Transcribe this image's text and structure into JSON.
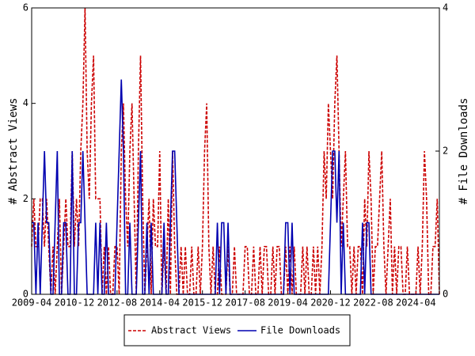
{
  "chart_data": {
    "type": "line",
    "categories": [
      "2009-04",
      null,
      null,
      null,
      null,
      null,
      null,
      null,
      null,
      null,
      null,
      null,
      null,
      null,
      null,
      null,
      null,
      null,
      null,
      null,
      "2010-12",
      null,
      null,
      null,
      null,
      null,
      null,
      null,
      null,
      null,
      null,
      null,
      null,
      null,
      null,
      null,
      null,
      null,
      null,
      null,
      "2012-08",
      null,
      null,
      null,
      null,
      null,
      null,
      null,
      null,
      null,
      null,
      null,
      null,
      null,
      null,
      null,
      null,
      null,
      null,
      null,
      "2014-04",
      null,
      null,
      null,
      null,
      null,
      null,
      null,
      null,
      null,
      null,
      null,
      null,
      null,
      null,
      null,
      null,
      null,
      null,
      null,
      "2015-12",
      null,
      null,
      null,
      null,
      null,
      null,
      null,
      null,
      null,
      null,
      null,
      null,
      null,
      null,
      null,
      null,
      null,
      null,
      null,
      "2017-08",
      null,
      null,
      null,
      null,
      null,
      null,
      null,
      null,
      null,
      null,
      null,
      null,
      null,
      null,
      null,
      null,
      null,
      null,
      null,
      "2019-04",
      null,
      null,
      null,
      null,
      null,
      null,
      null,
      null,
      null,
      null,
      null,
      null,
      null,
      null,
      null,
      null,
      null,
      null,
      null,
      "2020-12",
      null,
      null,
      null,
      null,
      null,
      null,
      null,
      null,
      null,
      null,
      null,
      null,
      null,
      null,
      null,
      null,
      null,
      null,
      null,
      "2022-08",
      null,
      null,
      null,
      null,
      null,
      null,
      null,
      null,
      null,
      null,
      null,
      null,
      null,
      null,
      null,
      null,
      null,
      null,
      null,
      "2024-04",
      null,
      null,
      null,
      null,
      null,
      null,
      null,
      null,
      null,
      null,
      null
    ],
    "y_label": "# Abstract Views",
    "y2_label": "# File Downloads",
    "series": [
      {
        "name": "Abstract Views",
        "color": "#cc0000",
        "dashed": true,
        "axis": "y",
        "values": [
          1,
          2,
          1,
          1,
          2,
          2,
          1,
          2,
          1,
          0,
          1,
          0,
          1,
          2,
          0,
          1,
          2,
          1,
          1,
          3,
          1,
          2,
          1,
          3,
          4,
          6,
          3,
          2,
          4,
          5,
          2,
          2,
          2,
          0,
          1,
          0,
          1,
          0,
          0,
          1,
          1,
          0,
          3,
          4,
          2,
          1,
          3,
          4,
          2,
          0,
          3,
          5,
          2,
          0,
          1,
          2,
          0,
          2,
          1,
          1,
          3,
          0,
          1,
          0,
          2,
          0,
          3,
          1,
          0,
          0,
          1,
          0,
          1,
          0,
          0,
          1,
          0,
          0,
          1,
          0,
          1,
          3,
          4,
          1,
          0,
          1,
          0,
          0,
          1,
          0,
          0,
          0,
          1,
          0,
          0,
          1,
          0,
          0,
          0,
          0,
          1,
          1,
          0,
          0,
          1,
          0,
          0,
          1,
          0,
          1,
          1,
          0,
          0,
          1,
          0,
          1,
          1,
          0,
          0,
          1,
          0,
          1,
          0,
          1,
          0,
          0,
          0,
          1,
          0,
          1,
          0,
          0,
          1,
          0,
          1,
          0,
          1,
          3,
          2,
          4,
          3,
          2,
          4,
          5,
          3,
          1,
          2,
          3,
          1,
          1,
          0,
          1,
          0,
          1,
          1,
          0,
          2,
          1,
          3,
          2,
          0,
          1,
          1,
          2,
          3,
          1,
          0,
          1,
          2,
          0,
          1,
          0,
          1,
          1,
          0,
          0,
          1,
          0,
          0,
          0,
          0,
          1,
          0,
          1,
          3,
          2,
          0,
          0,
          1,
          1,
          2,
          0
        ]
      },
      {
        "name": "File Downloads",
        "color": "#0000b0",
        "dashed": false,
        "axis": "y2",
        "values": [
          1,
          1,
          0,
          1,
          0,
          1,
          2,
          1,
          1,
          0,
          0,
          1,
          2,
          0,
          0,
          1,
          1,
          0,
          0,
          2,
          0,
          0,
          1,
          1,
          2,
          1,
          0,
          0,
          0,
          0,
          1,
          0,
          1,
          0,
          0,
          1,
          0,
          0,
          0,
          0,
          1,
          2,
          3,
          2,
          0,
          0,
          1,
          0,
          0,
          0,
          1,
          2,
          0,
          0,
          1,
          0,
          1,
          0,
          0,
          0,
          0,
          0,
          1,
          0,
          0,
          1,
          2,
          2,
          1,
          0,
          0,
          0,
          0,
          0,
          0,
          0,
          0,
          0,
          0,
          0,
          0,
          0,
          0,
          0,
          0,
          0,
          0,
          1,
          0,
          1,
          1,
          0,
          1,
          0,
          0,
          0,
          0,
          0,
          0,
          0,
          0,
          0,
          0,
          0,
          0,
          0,
          0,
          0,
          0,
          0,
          0,
          0,
          0,
          0,
          0,
          0,
          0,
          0,
          0,
          1,
          1,
          0,
          1,
          0,
          0,
          0,
          0,
          0,
          0,
          0,
          0,
          0,
          0,
          0,
          0,
          0,
          0,
          0,
          0,
          0,
          1,
          2,
          2,
          1,
          2,
          0,
          1,
          0,
          0,
          0,
          0,
          0,
          0,
          0,
          0,
          1,
          0,
          1,
          1,
          0,
          0,
          0,
          0,
          0,
          0,
          0,
          0,
          0,
          0,
          0,
          0,
          0,
          0,
          0,
          0,
          0,
          0,
          0,
          0,
          0,
          0,
          0,
          0,
          0,
          0,
          0,
          0,
          0,
          0,
          0,
          0,
          0
        ]
      }
    ],
    "ylim": [
      0,
      6
    ],
    "yticks": [
      0,
      2,
      4,
      6
    ],
    "y2lim": [
      0,
      4
    ],
    "y2ticks": [
      0,
      2,
      4
    ],
    "legend": "bottom"
  }
}
